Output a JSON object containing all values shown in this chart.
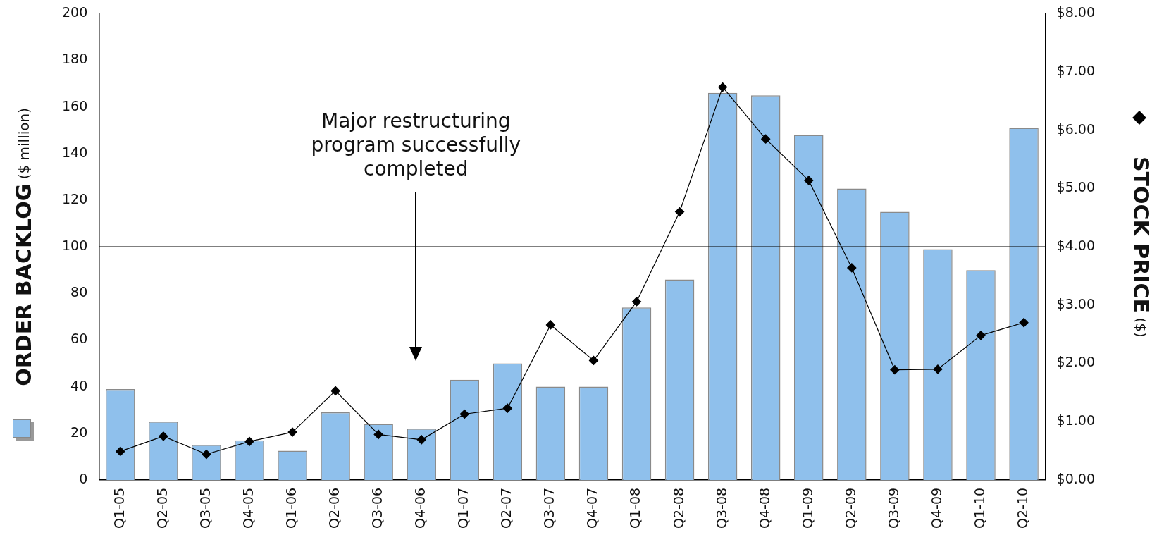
{
  "chart_data": {
    "type": "bar",
    "categories": [
      "Q1-05",
      "Q2-05",
      "Q3-05",
      "Q4-05",
      "Q1-06",
      "Q2-06",
      "Q3-06",
      "Q4-06",
      "Q1-07",
      "Q2-07",
      "Q3-07",
      "Q4-07",
      "Q1-08",
      "Q2-08",
      "Q3-08",
      "Q4-08",
      "Q1-09",
      "Q2-09",
      "Q3-09",
      "Q4-09",
      "Q1-10",
      "Q2-10"
    ],
    "series": [
      {
        "color": "#8fc0ec",
        "values": [
          39,
          25,
          15,
          17,
          12.5,
          29,
          24,
          22,
          43,
          50,
          40,
          40,
          74,
          86,
          166,
          165,
          148,
          125,
          115,
          99,
          90,
          151
        ]
      },
      {
        "type": "line",
        "axis": "y2",
        "color": "#000000",
        "marker": "diamond",
        "values": [
          0.49,
          0.75,
          0.44,
          0.66,
          0.82,
          1.53,
          0.78,
          0.69,
          1.13,
          1.23,
          2.66,
          2.05,
          3.06,
          4.6,
          6.74,
          5.85,
          5.14,
          3.64,
          1.89,
          1.9,
          2.48,
          2.7
        ]
      }
    ],
    "ylabel": "ORDER BACKLOG ($ million)",
    "y2label": "STOCK PRICE ($)",
    "ylim": [
      0,
      200
    ],
    "yticks": [
      0,
      20,
      40,
      60,
      80,
      100,
      120,
      140,
      160,
      180,
      200
    ],
    "y2lim": [
      0,
      8
    ],
    "y2ticks": [
      {
        "value": 0,
        "label": "$0.00"
      },
      {
        "value": 1,
        "label": "$1.00"
      },
      {
        "value": 2,
        "label": "$2.00"
      },
      {
        "value": 3,
        "label": "$3.00"
      },
      {
        "value": 4,
        "label": "$4.00"
      },
      {
        "value": 5,
        "label": "$5.00"
      },
      {
        "value": 6,
        "label": "$6.00"
      },
      {
        "value": 7,
        "label": "$7.00"
      },
      {
        "value": 8,
        "label": "$8.00"
      }
    ],
    "ref_lines": [
      {
        "axis": "y",
        "value": 100,
        "color": "#000000"
      }
    ],
    "annotations": [
      "Major restructuring program successfully completed"
    ],
    "grid": false,
    "legend": false
  }
}
